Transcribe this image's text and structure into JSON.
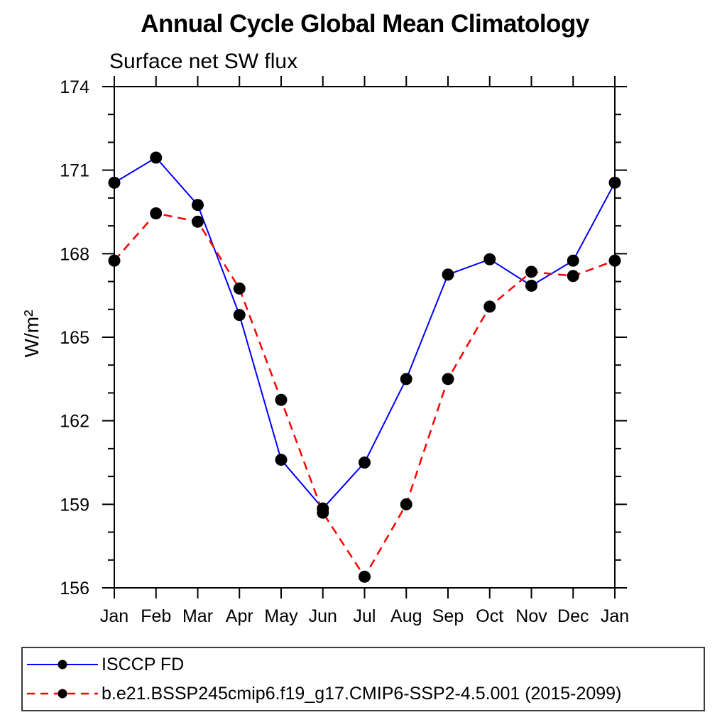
{
  "chart": {
    "title": "Annual Cycle Global Mean Climatology",
    "subtitle": "Surface net SW flux",
    "ylabel": "W/m²",
    "colors": {
      "series1": "#0000ff",
      "series2": "#ff0000",
      "marker": "#000000",
      "axis": "#000000",
      "background": "#ffffff"
    }
  },
  "chart_data": {
    "type": "line",
    "title": "Annual Cycle Global Mean Climatology",
    "subtitle": "Surface net SW flux",
    "xlabel": "",
    "ylabel": "W/m²",
    "categories": [
      "Jan",
      "Feb",
      "Mar",
      "Apr",
      "May",
      "Jun",
      "Jul",
      "Aug",
      "Sep",
      "Oct",
      "Nov",
      "Dec",
      "Jan"
    ],
    "series": [
      {
        "name": "ISCCP FD",
        "color": "#0000ff",
        "line_style": "solid",
        "marker": "filled-circle",
        "marker_color": "#000000",
        "values": [
          170.55,
          171.45,
          169.75,
          165.8,
          160.6,
          158.85,
          160.5,
          163.5,
          167.25,
          167.8,
          166.85,
          167.75,
          170.55
        ]
      },
      {
        "name": "b.e21.BSSP245cmip6.f19_g17.CMIP6-SSP2-4.5.001 (2015-2099)",
        "color": "#ff0000",
        "line_style": "dashed",
        "marker": "filled-circle",
        "marker_color": "#000000",
        "values": [
          167.75,
          169.45,
          169.15,
          166.75,
          162.75,
          158.7,
          156.4,
          159.0,
          163.5,
          166.1,
          167.35,
          167.2,
          167.75
        ]
      }
    ],
    "ylim": [
      156,
      174
    ],
    "ytick_major": [
      156,
      159,
      162,
      165,
      168,
      171,
      174
    ],
    "ytick_minor_step": 1,
    "grid": false,
    "legend_position": "bottom-left-box"
  },
  "legend": {
    "items": [
      {
        "label": "ISCCP FD"
      },
      {
        "label": "b.e21.BSSP245cmip6.f19_g17.CMIP6-SSP2-4.5.001 (2015-2099)"
      }
    ]
  }
}
